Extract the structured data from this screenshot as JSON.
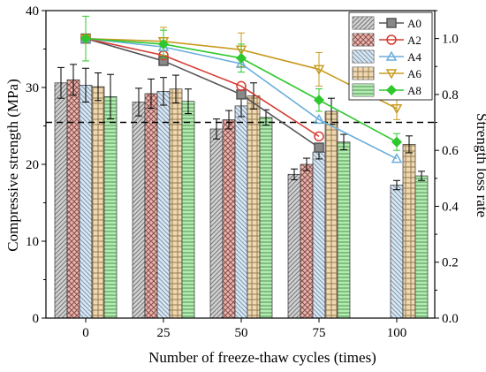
{
  "chart_data": {
    "type": "bar",
    "title": "",
    "xlabel": "Number of freeze-thaw cycles (times)",
    "ylabel": "Compressive strength (MPa)",
    "y2label": "Strength loss rate",
    "categories": [
      "0",
      "25",
      "50",
      "75",
      "100"
    ],
    "ylim": [
      0,
      40
    ],
    "yticks": [
      "0",
      "10",
      "20",
      "30",
      "40"
    ],
    "y2lim": [
      0.0,
      1.1
    ],
    "y2ticks": [
      "0.0",
      "0.2",
      "0.4",
      "0.6",
      "0.8",
      "1.0"
    ],
    "grid": false,
    "reference_line": {
      "axis": "y2",
      "value": 0.7,
      "style": "dashed"
    },
    "legend": {
      "position": "top-right",
      "entries": [
        "A0",
        "A2",
        "A4",
        "A6",
        "A8"
      ]
    },
    "bar_series": [
      {
        "name": "A0",
        "values": [
          30.6,
          28.1,
          24.6,
          18.7,
          0
        ],
        "errors": [
          2.0,
          1.8,
          1.3,
          0.7,
          0
        ],
        "color": "#909090"
      },
      {
        "name": "A2",
        "values": [
          31.0,
          29.2,
          25.8,
          20.0,
          0
        ],
        "errors": [
          2.0,
          1.9,
          1.2,
          0.8,
          0
        ],
        "color": "#d04a3c"
      },
      {
        "name": "A4",
        "values": [
          30.3,
          29.5,
          27.6,
          21.6,
          17.3
        ],
        "errors": [
          2.2,
          1.8,
          1.4,
          0.9,
          0.6
        ],
        "color": "#9ec8ec"
      },
      {
        "name": "A6",
        "values": [
          30.1,
          29.8,
          28.9,
          26.9,
          22.6
        ],
        "errors": [
          1.8,
          1.8,
          1.7,
          1.7,
          1.1
        ],
        "color": "#d9a040"
      },
      {
        "name": "A8",
        "values": [
          28.8,
          28.2,
          26.1,
          22.9,
          18.5
        ],
        "errors": [
          2.9,
          1.6,
          1.0,
          1.0,
          0.6
        ],
        "color": "#3ecf3e"
      }
    ],
    "line_series": [
      {
        "name": "A0",
        "marker": "square",
        "color": "#555555",
        "values": [
          1.0,
          0.92,
          0.8,
          0.61,
          null
        ],
        "errors": [
          0,
          0,
          0,
          0,
          0
        ]
      },
      {
        "name": "A2",
        "marker": "circle",
        "color": "#d43c32",
        "values": [
          1.0,
          0.94,
          0.83,
          0.65,
          null
        ],
        "errors": [
          0,
          0,
          0,
          0,
          0
        ]
      },
      {
        "name": "A4",
        "marker": "triangle-up",
        "color": "#6aaedc",
        "values": [
          1.0,
          0.97,
          0.91,
          0.71,
          0.57
        ],
        "errors": [
          0,
          0,
          0,
          0,
          0
        ]
      },
      {
        "name": "A6",
        "marker": "triangle-down",
        "color": "#c89b20",
        "values": [
          1.0,
          0.99,
          0.96,
          0.89,
          0.75
        ],
        "errors": [
          0,
          0.05,
          0.06,
          0.06,
          0.04
        ]
      },
      {
        "name": "A8",
        "marker": "diamond",
        "color": "#2ec82e",
        "values": [
          1.0,
          0.98,
          0.93,
          0.78,
          0.63
        ],
        "errors": [
          0.08,
          0.05,
          0.05,
          0.04,
          0.03
        ]
      }
    ]
  }
}
